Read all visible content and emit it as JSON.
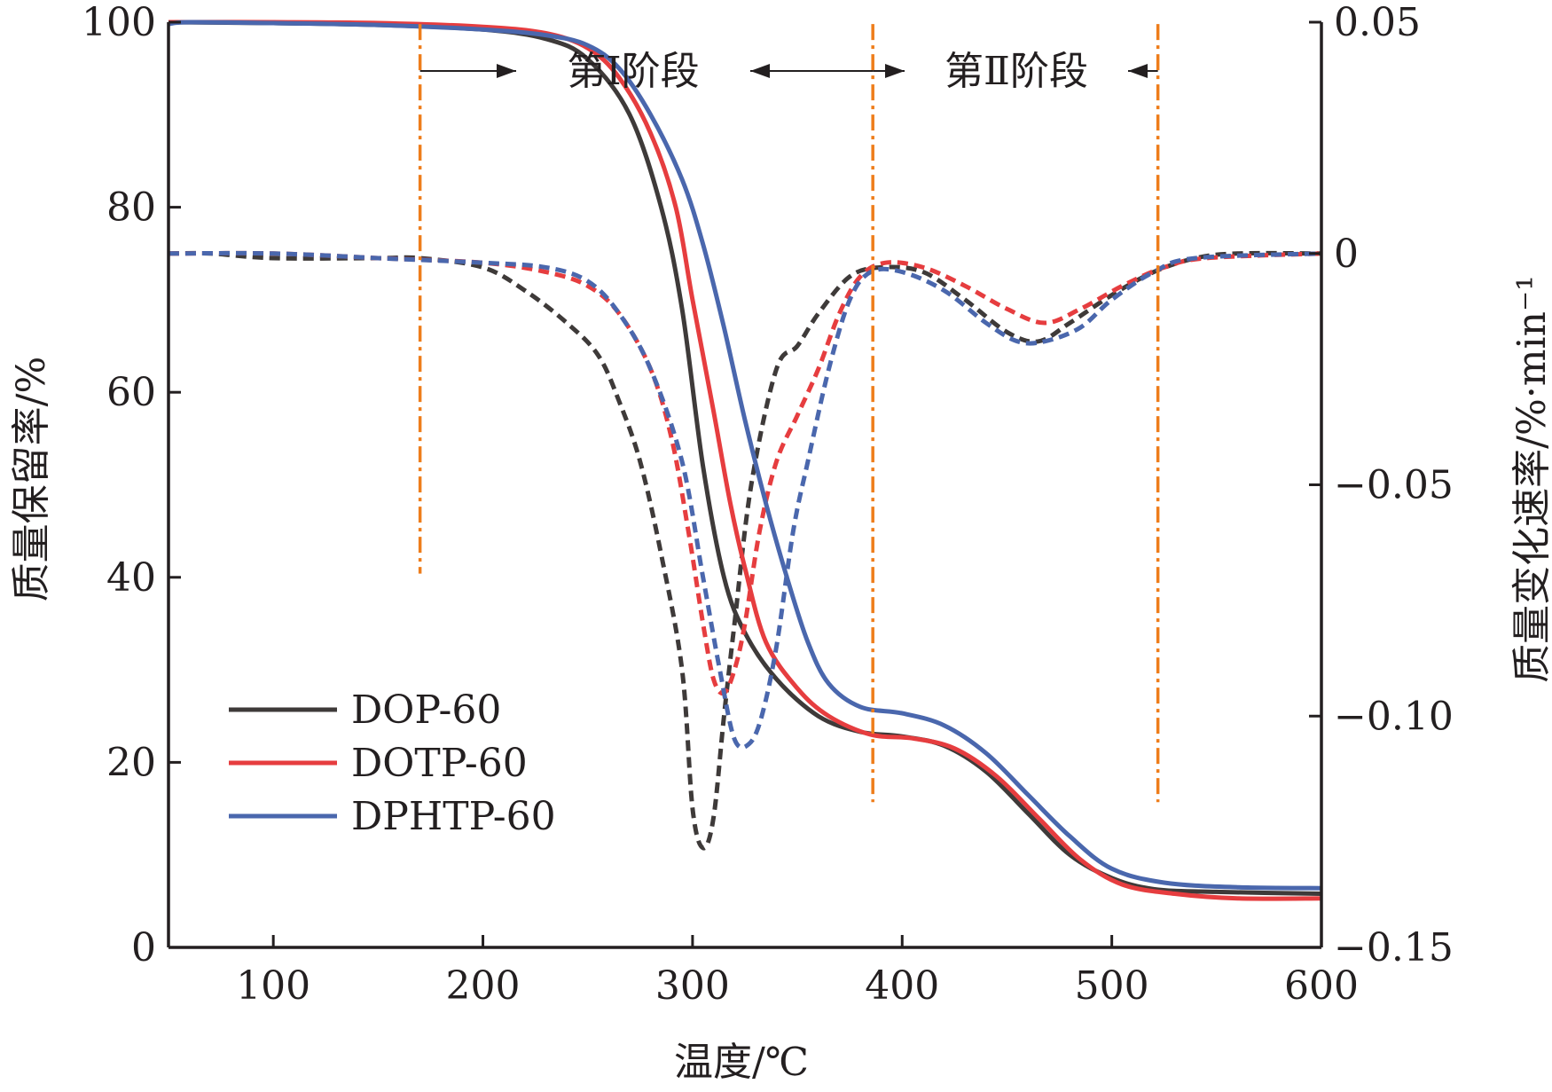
{
  "chart_data": {
    "type": "line",
    "xlabel": "温度/℃",
    "ylabel_left": "质量保留率/%",
    "ylabel_right": "质量变化速率/%·min⁻¹",
    "xlim": [
      50,
      600
    ],
    "ylim_left": [
      0,
      100
    ],
    "ylim_right": [
      -0.15,
      0.05
    ],
    "x_ticks": [
      "100",
      "200",
      "300",
      "400",
      "500",
      "600"
    ],
    "y_ticks_left": [
      "0",
      "20",
      "40",
      "60",
      "80",
      "100"
    ],
    "y_ticks_right": [
      "0.05",
      "0",
      "−0.05",
      "−0.10",
      "−0.15"
    ],
    "legend_position": "bottom-left",
    "stage_markers": {
      "x": [
        170,
        386,
        522
      ],
      "stage1_label": "第Ⅰ阶段",
      "stage2_label": "第Ⅱ阶段"
    },
    "series": [
      {
        "name": "DOP-60",
        "color": "#3e3a39",
        "mass_retention_pct": [
          [
            50,
            100
          ],
          [
            100,
            99.9
          ],
          [
            150,
            99.7
          ],
          [
            200,
            99.2
          ],
          [
            230,
            98.2
          ],
          [
            250,
            96
          ],
          [
            270,
            90
          ],
          [
            285,
            80
          ],
          [
            295,
            69
          ],
          [
            305,
            52
          ],
          [
            315,
            40
          ],
          [
            325,
            34
          ],
          [
            340,
            29
          ],
          [
            360,
            25
          ],
          [
            380,
            23.3
          ],
          [
            400,
            22.8
          ],
          [
            420,
            21.8
          ],
          [
            440,
            19
          ],
          [
            460,
            14.5
          ],
          [
            480,
            10
          ],
          [
            500,
            7.5
          ],
          [
            520,
            6.3
          ],
          [
            550,
            6
          ],
          [
            600,
            5.8
          ]
        ],
        "rate_pct_per_min": [
          [
            50,
            0
          ],
          [
            70,
            0
          ],
          [
            100,
            -0.001
          ],
          [
            150,
            -0.001
          ],
          [
            170,
            -0.001
          ],
          [
            200,
            -0.003
          ],
          [
            220,
            -0.008
          ],
          [
            240,
            -0.015
          ],
          [
            255,
            -0.022
          ],
          [
            265,
            -0.032
          ],
          [
            275,
            -0.045
          ],
          [
            285,
            -0.065
          ],
          [
            295,
            -0.09
          ],
          [
            300,
            -0.12
          ],
          [
            305,
            -0.1285
          ],
          [
            310,
            -0.122
          ],
          [
            315,
            -0.1
          ],
          [
            320,
            -0.08
          ],
          [
            328,
            -0.05
          ],
          [
            340,
            -0.025
          ],
          [
            350,
            -0.02
          ],
          [
            360,
            -0.013
          ],
          [
            375,
            -0.005
          ],
          [
            390,
            -0.003
          ],
          [
            410,
            -0.004
          ],
          [
            430,
            -0.01
          ],
          [
            450,
            -0.017
          ],
          [
            465,
            -0.019
          ],
          [
            480,
            -0.015
          ],
          [
            500,
            -0.009
          ],
          [
            520,
            -0.004
          ],
          [
            540,
            -0.001
          ],
          [
            560,
            0
          ],
          [
            600,
            0
          ]
        ]
      },
      {
        "name": "DOTP-60",
        "color": "#e63d3f",
        "mass_retention_pct": [
          [
            50,
            100
          ],
          [
            100,
            100
          ],
          [
            150,
            99.9
          ],
          [
            200,
            99.5
          ],
          [
            230,
            98.8
          ],
          [
            250,
            97.2
          ],
          [
            265,
            94
          ],
          [
            280,
            88
          ],
          [
            292,
            80
          ],
          [
            300,
            70
          ],
          [
            310,
            58
          ],
          [
            318,
            48
          ],
          [
            325,
            41
          ],
          [
            335,
            33
          ],
          [
            350,
            28
          ],
          [
            365,
            25
          ],
          [
            385,
            23
          ],
          [
            405,
            22.6
          ],
          [
            425,
            21.5
          ],
          [
            445,
            18.5
          ],
          [
            465,
            14
          ],
          [
            485,
            9.5
          ],
          [
            505,
            6.8
          ],
          [
            530,
            5.8
          ],
          [
            560,
            5.3
          ],
          [
            600,
            5.3
          ]
        ],
        "rate_pct_per_min": [
          [
            50,
            0
          ],
          [
            100,
            0
          ],
          [
            150,
            -0.001
          ],
          [
            200,
            -0.002
          ],
          [
            230,
            -0.004
          ],
          [
            250,
            -0.007
          ],
          [
            265,
            -0.013
          ],
          [
            280,
            -0.025
          ],
          [
            290,
            -0.04
          ],
          [
            298,
            -0.06
          ],
          [
            305,
            -0.08
          ],
          [
            310,
            -0.092
          ],
          [
            315,
            -0.095
          ],
          [
            320,
            -0.09
          ],
          [
            325,
            -0.08
          ],
          [
            332,
            -0.06
          ],
          [
            340,
            -0.045
          ],
          [
            350,
            -0.035
          ],
          [
            360,
            -0.025
          ],
          [
            370,
            -0.013
          ],
          [
            380,
            -0.005
          ],
          [
            392,
            -0.002
          ],
          [
            410,
            -0.003
          ],
          [
            430,
            -0.007
          ],
          [
            450,
            -0.012
          ],
          [
            468,
            -0.015
          ],
          [
            485,
            -0.012
          ],
          [
            505,
            -0.007
          ],
          [
            525,
            -0.003
          ],
          [
            545,
            -0.001
          ],
          [
            600,
            0
          ]
        ]
      },
      {
        "name": "DPHTP-60",
        "color": "#4a67ad",
        "mass_retention_pct": [
          [
            50,
            99.8
          ],
          [
            60,
            100
          ],
          [
            100,
            99.9
          ],
          [
            150,
            99.7
          ],
          [
            200,
            99.2
          ],
          [
            230,
            98.6
          ],
          [
            250,
            97.5
          ],
          [
            265,
            95
          ],
          [
            280,
            90
          ],
          [
            295,
            83
          ],
          [
            305,
            76
          ],
          [
            315,
            67
          ],
          [
            325,
            57
          ],
          [
            335,
            48
          ],
          [
            345,
            40
          ],
          [
            355,
            33
          ],
          [
            365,
            28.5
          ],
          [
            380,
            26
          ],
          [
            400,
            25.3
          ],
          [
            420,
            24
          ],
          [
            440,
            21
          ],
          [
            460,
            16.5
          ],
          [
            480,
            12
          ],
          [
            500,
            8.5
          ],
          [
            525,
            7
          ],
          [
            560,
            6.5
          ],
          [
            600,
            6.4
          ]
        ],
        "rate_pct_per_min": [
          [
            50,
            0
          ],
          [
            100,
            0
          ],
          [
            150,
            -0.001
          ],
          [
            200,
            -0.002
          ],
          [
            230,
            -0.003
          ],
          [
            250,
            -0.006
          ],
          [
            265,
            -0.013
          ],
          [
            280,
            -0.025
          ],
          [
            295,
            -0.045
          ],
          [
            305,
            -0.07
          ],
          [
            313,
            -0.09
          ],
          [
            320,
            -0.105
          ],
          [
            327,
            -0.106
          ],
          [
            333,
            -0.1
          ],
          [
            340,
            -0.085
          ],
          [
            348,
            -0.06
          ],
          [
            355,
            -0.045
          ],
          [
            365,
            -0.025
          ],
          [
            375,
            -0.01
          ],
          [
            385,
            -0.004
          ],
          [
            400,
            -0.004
          ],
          [
            420,
            -0.008
          ],
          [
            440,
            -0.015
          ],
          [
            455,
            -0.019
          ],
          [
            468,
            -0.019
          ],
          [
            485,
            -0.016
          ],
          [
            500,
            -0.01
          ],
          [
            520,
            -0.004
          ],
          [
            540,
            -0.001
          ],
          [
            600,
            0
          ]
        ]
      }
    ]
  }
}
